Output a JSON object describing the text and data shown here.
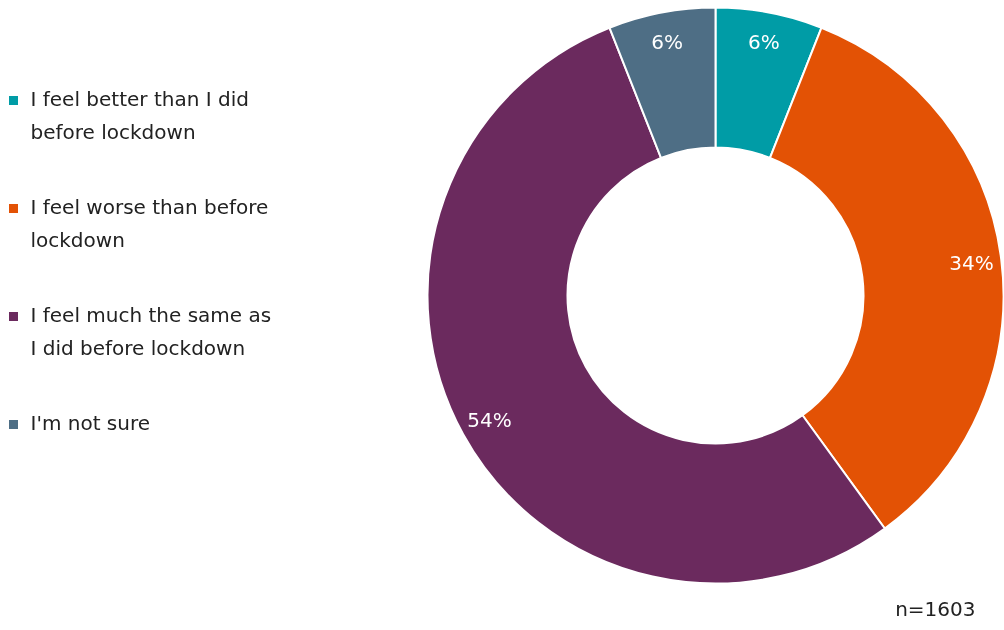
{
  "chart_data": {
    "type": "donut",
    "categories": [
      "I feel better than I did before lockdown",
      "I feel worse than before lockdown",
      "I feel much the same as I did before lockdown",
      "I'm not sure"
    ],
    "values": [
      6,
      34,
      54,
      6
    ],
    "colors": [
      "#009ca6",
      "#e35205",
      "#6b2a5e",
      "#4e6e85"
    ],
    "value_labels": [
      "6%",
      "34%",
      "54%",
      "6%"
    ],
    "legend": "left",
    "annotations": [
      "n=1603"
    ]
  }
}
